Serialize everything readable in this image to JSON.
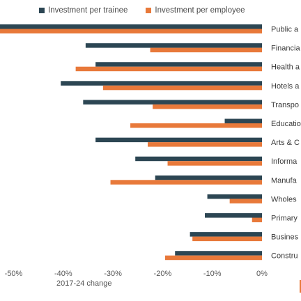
{
  "chart_data": {
    "type": "bar",
    "orientation": "horizontal",
    "xlabel": "2017-24 change",
    "xlim": [
      -55,
      0
    ],
    "xticks": [
      "-50%",
      "-40%",
      "-30%",
      "-20%",
      "-10%",
      "0%"
    ],
    "xtick_values": [
      -50,
      -40,
      -30,
      -20,
      -10,
      0
    ],
    "legend_position": "top",
    "grid": false,
    "categories": [
      "Public a",
      "Financia",
      "Health a",
      "Hotels a",
      "Transpo",
      "Educatio",
      "Arts & C",
      "Informa",
      "Manufa",
      "Wholes",
      "Primary",
      "Busines",
      "Constru"
    ],
    "series": [
      {
        "name": "Investment per trainee",
        "color": "#2c4653",
        "values": [
          -56,
          -35.5,
          -33.5,
          -40.5,
          -36,
          -7.5,
          -33.5,
          -25.5,
          -21.5,
          -11,
          -11.5,
          -14.5,
          -17.5
        ]
      },
      {
        "name": "Investment per employee",
        "color": "#e8793a",
        "values": [
          -56,
          -22.5,
          -37.5,
          -32,
          -22,
          -26.5,
          -23,
          -19,
          -30.5,
          -6.5,
          -2,
          -14,
          -19.5
        ]
      }
    ]
  }
}
